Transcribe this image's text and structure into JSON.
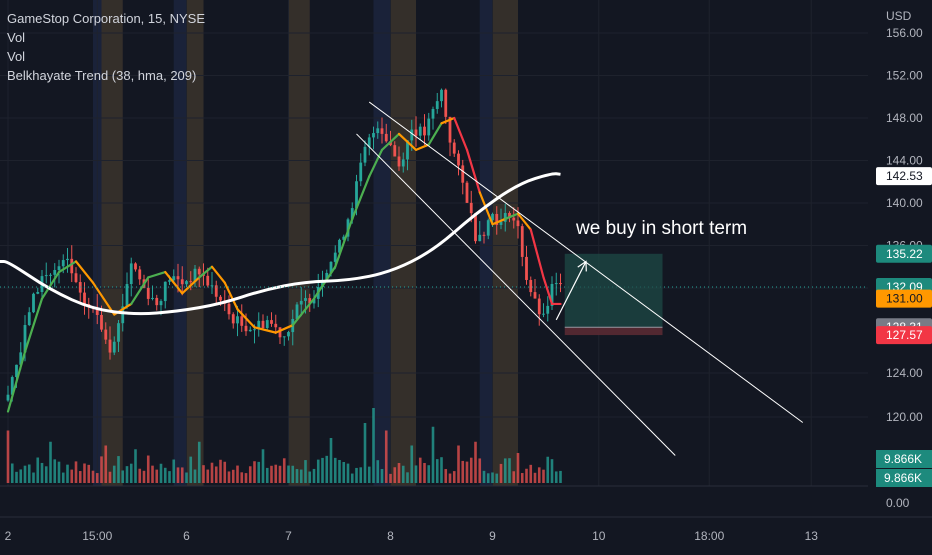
{
  "legend": {
    "line1": "GameStop Corporation, 15, NYSE",
    "line2": "Vol",
    "line3": "Vol",
    "line4": "Belkhayate Trend (38, hma, 209)"
  },
  "currency_label": "USD",
  "annotation": "we buy in short term",
  "colors": {
    "background": "#131722",
    "up": "#26a69a",
    "down": "#ef5350",
    "trend_white": "#ffffff",
    "hma_green": "#4caf50",
    "hma_orange": "#ff9800",
    "hma_red": "#f23645",
    "session_orange": "#8d6e3f",
    "session_blue": "#2a3a6a",
    "position_fill": "#1e4a45",
    "stop_fill": "#5a2a33"
  },
  "chart_data": {
    "type": "candlestick",
    "y_axis": {
      "ylim": [
        111,
        157.5
      ],
      "ticks": [
        "156.00",
        "152.00",
        "148.00",
        "144.00",
        "140.00",
        "136.00",
        "132.00",
        "124.00",
        "120.00"
      ],
      "tick_values": [
        156,
        152,
        148,
        144,
        140,
        136,
        132,
        124,
        120
      ],
      "volume_tick": "0.00"
    },
    "x_axis": {
      "tick_labels": [
        "2",
        "15:00",
        "6",
        "7",
        "8",
        "9",
        "10",
        "18:00",
        "13"
      ],
      "tick_bar_index": [
        0,
        21,
        42,
        66,
        90,
        114,
        139,
        165,
        189
      ]
    },
    "price_tags": [
      {
        "value": 142.53,
        "label": "142.53",
        "bg": "#ffffff",
        "fg": "#131722"
      },
      {
        "value": 135.22,
        "label": "135.22",
        "bg": "#1d8a7d",
        "fg": "#ffffff"
      },
      {
        "value": 132.09,
        "label": "132.09",
        "bg": "#1d8a7d",
        "fg": "#ffffff"
      },
      {
        "value": 131.0,
        "label": "131.00",
        "bg": "#ff9800",
        "fg": "#131722"
      },
      {
        "value": 128.31,
        "label": "128.31",
        "bg": "#787b86",
        "fg": "#ffffff"
      },
      {
        "value": 127.57,
        "label": "127.57",
        "bg": "#f23645",
        "fg": "#ffffff"
      }
    ],
    "volume_tags": [
      {
        "label": "9.866K",
        "bg": "#1d8a7d",
        "fg": "#ffffff"
      },
      {
        "label": "9.866K",
        "bg": "#1d8a7d",
        "fg": "#ffffff"
      }
    ],
    "current_price": 132.09,
    "price_anchors": [
      [
        0,
        121.5
      ],
      [
        4,
        126
      ],
      [
        6,
        130
      ],
      [
        9,
        133
      ],
      [
        12,
        133.5
      ],
      [
        15,
        134.5
      ],
      [
        18,
        131
      ],
      [
        22,
        129.5
      ],
      [
        25,
        126.5
      ],
      [
        27,
        128.5
      ],
      [
        30,
        134.5
      ],
      [
        33,
        132
      ],
      [
        36,
        130.5
      ],
      [
        39,
        133
      ],
      [
        42,
        132.5
      ],
      [
        46,
        133.5
      ],
      [
        49,
        132
      ],
      [
        53,
        129.5
      ],
      [
        56,
        128.5
      ],
      [
        59,
        128.3
      ],
      [
        62,
        129
      ],
      [
        64,
        128.2
      ],
      [
        66,
        127.5
      ],
      [
        69,
        130
      ],
      [
        73,
        131.5
      ],
      [
        76,
        134
      ],
      [
        79,
        136
      ],
      [
        82,
        140
      ],
      [
        85,
        145
      ],
      [
        88,
        147.5
      ],
      [
        91,
        145.5
      ],
      [
        93,
        143.5
      ],
      [
        96,
        147
      ],
      [
        99,
        146.5
      ],
      [
        101,
        148.5
      ],
      [
        103,
        150.5
      ],
      [
        105,
        146
      ],
      [
        107,
        143
      ],
      [
        109,
        140.5
      ],
      [
        111,
        137
      ],
      [
        113,
        137.5
      ],
      [
        115,
        139
      ],
      [
        117,
        138
      ],
      [
        119,
        139.2
      ],
      [
        121,
        137.5
      ],
      [
        123,
        133
      ],
      [
        125,
        130.5
      ],
      [
        127,
        129
      ],
      [
        129,
        132
      ],
      [
        130,
        132.09
      ]
    ],
    "trend_line_white": [
      [
        0,
        134.5
      ],
      [
        10,
        131.8
      ],
      [
        20,
        130
      ],
      [
        30,
        129.5
      ],
      [
        40,
        129.8
      ],
      [
        50,
        130.5
      ],
      [
        60,
        131.8
      ],
      [
        70,
        132.6
      ],
      [
        80,
        132.7
      ],
      [
        90,
        133.5
      ],
      [
        100,
        135.5
      ],
      [
        110,
        139
      ],
      [
        120,
        141.8
      ],
      [
        128,
        142.8
      ],
      [
        130,
        142.7
      ]
    ],
    "hma": [
      [
        0,
        120.5,
        "g"
      ],
      [
        4,
        126,
        "g"
      ],
      [
        8,
        131,
        "g"
      ],
      [
        12,
        133.5,
        "g"
      ],
      [
        16,
        134.5,
        "o"
      ],
      [
        20,
        132.5,
        "o"
      ],
      [
        25,
        129.5,
        "o"
      ],
      [
        29,
        130.5,
        "g"
      ],
      [
        33,
        133,
        "g"
      ],
      [
        37,
        133.5,
        "o"
      ],
      [
        41,
        131.5,
        "o"
      ],
      [
        45,
        133,
        "g"
      ],
      [
        48,
        134,
        "o"
      ],
      [
        51,
        132.5,
        "o"
      ],
      [
        54,
        130,
        "o"
      ],
      [
        58,
        128.3,
        "o"
      ],
      [
        63,
        127.8,
        "o"
      ],
      [
        67,
        128.5,
        "g"
      ],
      [
        72,
        131,
        "g"
      ],
      [
        77,
        134,
        "g"
      ],
      [
        81,
        138.5,
        "g"
      ],
      [
        85,
        142.5,
        "g"
      ],
      [
        88,
        145,
        "g"
      ],
      [
        92,
        146.5,
        "o"
      ],
      [
        96,
        145,
        "o"
      ],
      [
        99,
        145.5,
        "g"
      ],
      [
        102,
        147.5,
        "o"
      ],
      [
        105,
        148,
        "r"
      ],
      [
        108,
        145,
        "r"
      ],
      [
        111,
        141,
        "o"
      ],
      [
        114,
        138,
        "o"
      ],
      [
        117,
        138.5,
        "g"
      ],
      [
        120,
        139,
        "o"
      ],
      [
        123,
        137.5,
        "r"
      ],
      [
        126,
        133,
        "r"
      ],
      [
        128,
        130.5,
        "r"
      ],
      [
        130,
        130.5,
        "r"
      ]
    ],
    "volume_spikes": [
      [
        0,
        0.7
      ],
      [
        10,
        0.55
      ],
      [
        23,
        0.5
      ],
      [
        30,
        0.45
      ],
      [
        45,
        0.55
      ],
      [
        60,
        0.45
      ],
      [
        76,
        0.6
      ],
      [
        84,
        0.8
      ],
      [
        86,
        1.0
      ],
      [
        89,
        0.7
      ],
      [
        95,
        0.5
      ],
      [
        100,
        0.75
      ],
      [
        106,
        0.5
      ],
      [
        110,
        0.55
      ],
      [
        120,
        0.4
      ],
      [
        127,
        0.35
      ]
    ],
    "session_bands": [
      {
        "from": 22,
        "to": 27,
        "color": "orange"
      },
      {
        "from": 42,
        "to": 46,
        "color": "orange"
      },
      {
        "from": 66,
        "to": 71,
        "color": "orange"
      },
      {
        "from": 90,
        "to": 96,
        "color": "orange"
      },
      {
        "from": 114,
        "to": 120,
        "color": "orange"
      },
      {
        "from": 20,
        "to": 22,
        "color": "blue"
      },
      {
        "from": 39,
        "to": 42,
        "color": "blue"
      },
      {
        "from": 86,
        "to": 90,
        "color": "blue"
      },
      {
        "from": 111,
        "to": 114,
        "color": "blue"
      }
    ],
    "channel_upper": {
      "from": [
        85,
        149.5
      ],
      "to": [
        187,
        119.5
      ]
    },
    "channel_lower": {
      "from": [
        82,
        146.5
      ],
      "to": [
        157,
        116.5
      ]
    },
    "position": {
      "from_bar": 131,
      "to_bar": 154,
      "entry": 128.31,
      "target": 135.22,
      "stop": 127.57
    },
    "arrow": {
      "from": [
        129,
        129
      ],
      "to": [
        136,
        134.5
      ]
    }
  }
}
